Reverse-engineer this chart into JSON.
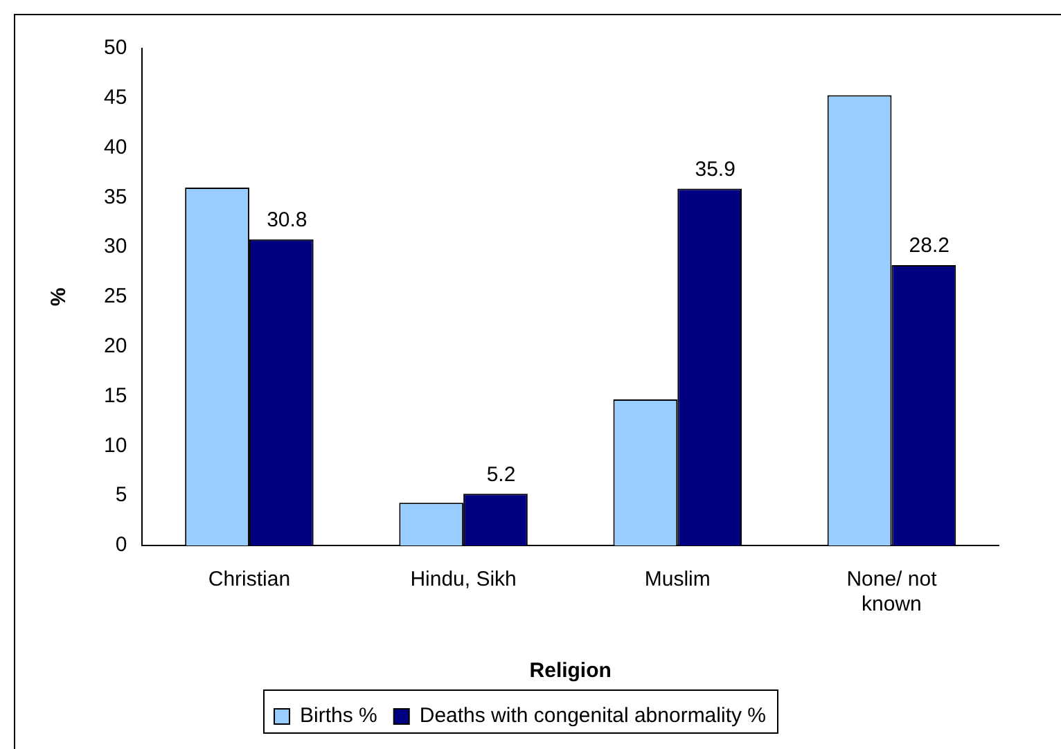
{
  "chart_data": {
    "type": "bar",
    "xlabel": "Religion",
    "ylabel": "%",
    "categories": [
      "Christian",
      "Hindu, Sikh",
      "Muslim",
      "None/ not known"
    ],
    "series": [
      {
        "name": "Births %",
        "color": "#99ccff",
        "values": [
          36,
          4.3,
          14.7,
          45.3
        ]
      },
      {
        "name": "Deaths with congenital abnormality %",
        "color": "#000080",
        "values": [
          30.8,
          5.2,
          35.9,
          28.2
        ],
        "value_labels": [
          "30.8",
          "5.2",
          "35.9",
          "28.2"
        ]
      }
    ],
    "ylim": [
      0,
      50
    ],
    "yticks": [
      0,
      5,
      10,
      15,
      20,
      25,
      30,
      35,
      40,
      45,
      50
    ],
    "grid": false,
    "legend": "bottom"
  }
}
